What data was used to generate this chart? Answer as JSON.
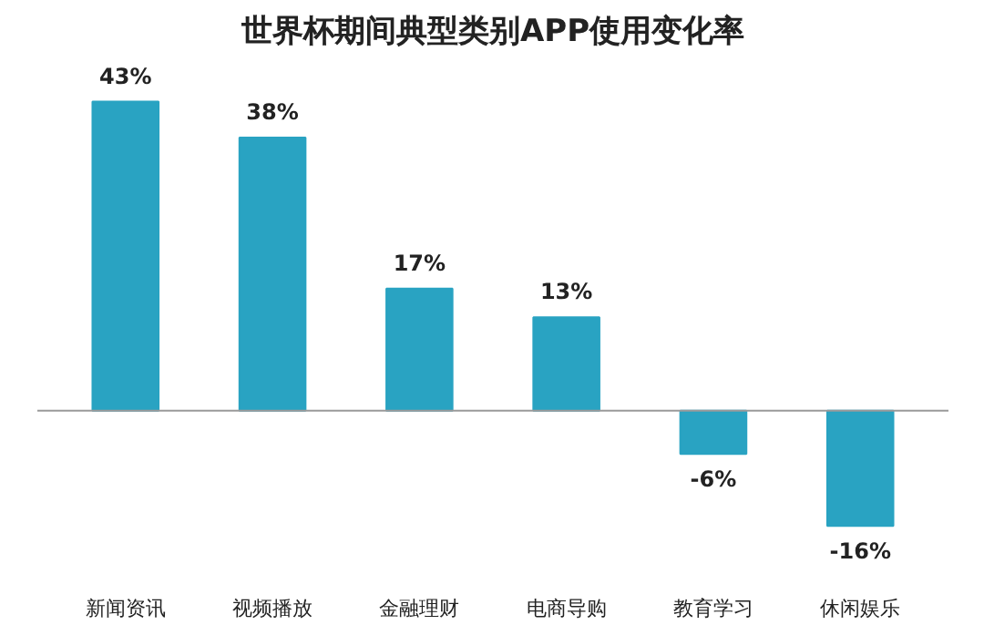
{
  "chart_data": {
    "type": "bar",
    "title": "世界杯期间典型类别APP使用变化率",
    "categories": [
      "新闻资讯",
      "视频播放",
      "金融理财",
      "电商导购",
      "教育学习",
      "休闲娱乐"
    ],
    "values": [
      43,
      38,
      17,
      13,
      -6,
      -16
    ],
    "color": "#29a3c2",
    "tick_labels": "x",
    "data_labels": true,
    "value_labels": [
      "43%",
      "38%",
      "17%",
      "13%",
      "-6%",
      "-16%"
    ],
    "grid": false
  }
}
